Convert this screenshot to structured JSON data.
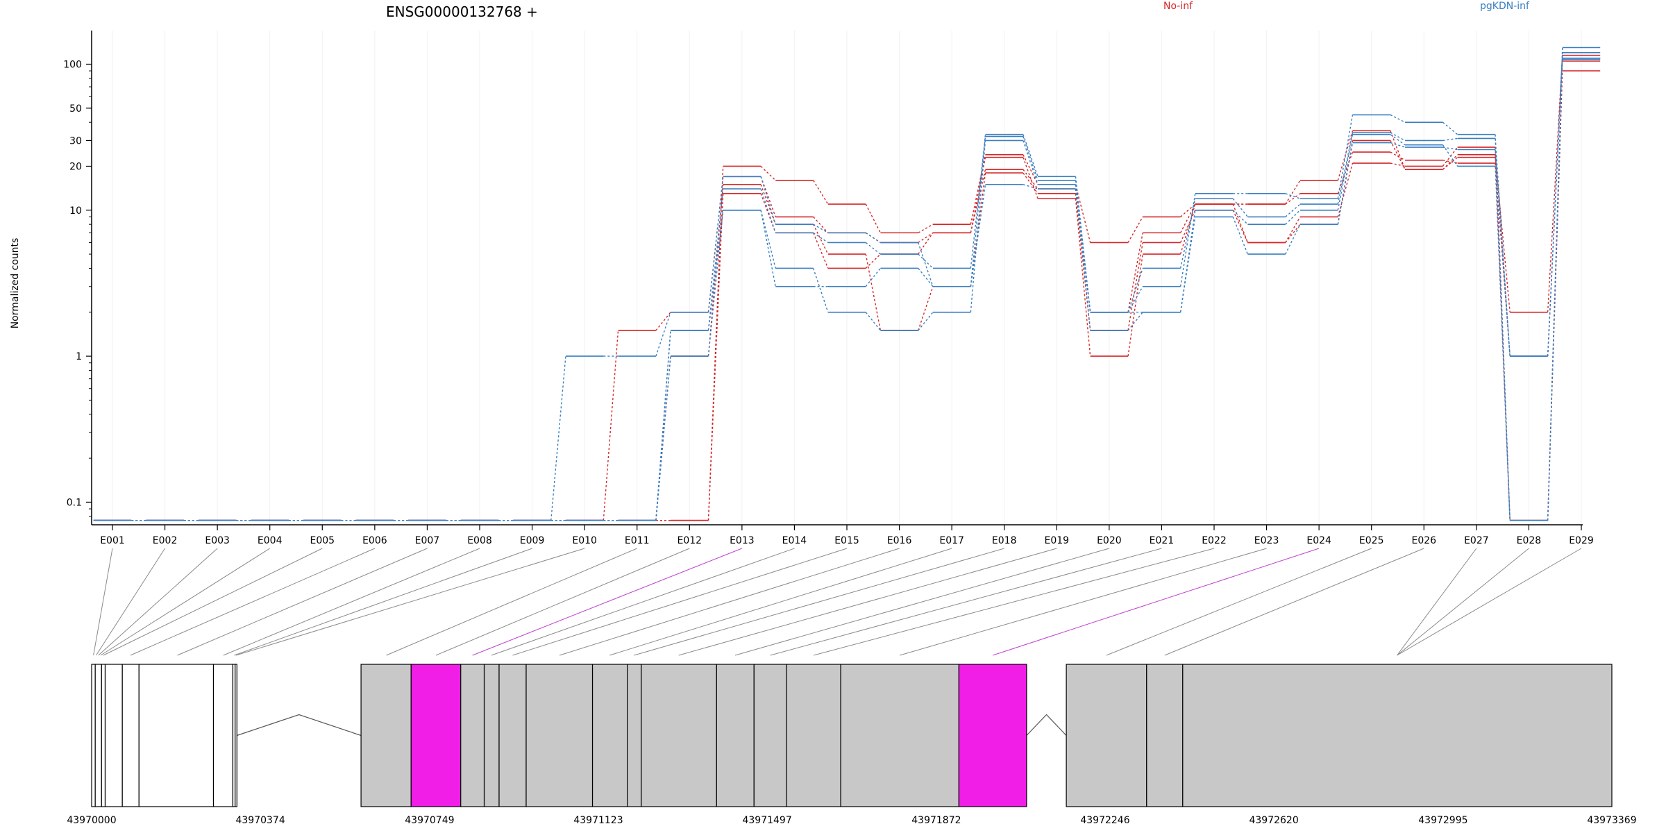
{
  "chart_data": {
    "type": "line",
    "title": "ENSG00000132768 +",
    "ylabel": "Normalized counts",
    "xlabel": "",
    "y_scale": "log",
    "ylim": [
      0.07,
      170
    ],
    "y_ticks": [
      0.1,
      1,
      10,
      20,
      30,
      50,
      100
    ],
    "y_tick_labels": [
      "0.1",
      "1",
      "10",
      "20",
      "30",
      "50",
      "100"
    ],
    "zero_value": 0.075,
    "grid": "vertical-light",
    "legend": [
      {
        "name": "No-inf",
        "color": "#d62728",
        "placement": "top-center"
      },
      {
        "name": "pgKDN-inf",
        "color": "#3a7fc1",
        "placement": "top-right"
      }
    ],
    "categories": [
      "E001",
      "E002",
      "E003",
      "E004",
      "E005",
      "E006",
      "E007",
      "E008",
      "E009",
      "E010",
      "E011",
      "E012",
      "E013",
      "E014",
      "E015",
      "E016",
      "E017",
      "E018",
      "E019",
      "E020",
      "E021",
      "E022",
      "E023",
      "E024",
      "E025",
      "E026",
      "E027",
      "E028",
      "E029"
    ],
    "series": [
      {
        "group": "No-inf",
        "color": "#d62728",
        "values": [
          0,
          0,
          0,
          0,
          0,
          0,
          0,
          0,
          0,
          0,
          0,
          0,
          20,
          16,
          11,
          7,
          8,
          24,
          15,
          6,
          9,
          11,
          11,
          16,
          35,
          19,
          23,
          2,
          115
        ]
      },
      {
        "group": "No-inf",
        "color": "#d62728",
        "values": [
          0,
          0,
          0,
          0,
          0,
          0,
          0,
          0,
          0,
          0,
          1.5,
          2,
          17,
          9,
          7,
          6,
          7,
          19,
          14,
          2,
          7,
          11,
          11,
          13,
          25,
          22,
          21,
          1,
          110
        ]
      },
      {
        "group": "No-inf",
        "color": "#d62728",
        "values": [
          0,
          0,
          0,
          0,
          0,
          0,
          0,
          0,
          0,
          0,
          0,
          1,
          15,
          8,
          5,
          1.5,
          3,
          18,
          13,
          1.5,
          6,
          10,
          6,
          9,
          21,
          20,
          27,
          0,
          105
        ]
      },
      {
        "group": "No-inf",
        "color": "#d62728",
        "values": [
          0,
          0,
          0,
          0,
          0,
          0,
          0,
          0,
          0,
          0,
          0,
          0,
          13,
          7,
          4,
          5,
          7,
          23,
          12,
          1,
          5,
          11,
          6,
          8,
          30,
          19,
          24,
          0,
          90
        ]
      },
      {
        "group": "pgKDN-inf",
        "color": "#3a7fc1",
        "values": [
          0,
          0,
          0,
          0,
          0,
          0,
          0,
          0,
          0,
          1,
          1,
          2,
          17,
          8,
          7,
          6,
          3,
          33,
          17,
          2,
          3,
          13,
          13,
          12,
          45,
          40,
          33,
          0,
          130
        ]
      },
      {
        "group": "pgKDN-inf",
        "color": "#3a7fc1",
        "values": [
          0,
          0,
          0,
          0,
          0,
          0,
          0,
          0,
          0,
          0,
          0,
          1.5,
          14,
          7,
          6,
          5,
          4,
          32,
          16,
          2,
          4,
          12,
          9,
          11,
          34,
          30,
          31,
          1,
          120
        ]
      },
      {
        "group": "pgKDN-inf",
        "color": "#3a7fc1",
        "values": [
          0,
          0,
          0,
          0,
          0,
          0,
          0,
          0,
          0,
          0,
          0,
          1,
          10,
          4,
          2,
          1.5,
          2,
          30,
          15,
          1.5,
          2,
          10,
          8,
          10,
          33,
          28,
          20,
          0,
          110
        ]
      },
      {
        "group": "pgKDN-inf",
        "color": "#3a7fc1",
        "values": [
          0,
          0,
          0,
          0,
          0,
          0,
          0,
          0,
          0,
          0,
          0,
          1.5,
          10,
          3,
          3,
          4,
          3,
          15,
          14,
          2,
          2,
          9,
          5,
          8,
          29,
          27,
          26,
          1,
          108
        ]
      }
    ],
    "gene_model": {
      "start": 43970000,
      "end": 43973369,
      "tick_labels": [
        "43970000",
        "43970374",
        "43970749",
        "43971123",
        "43971497",
        "43971872",
        "43972246",
        "43972620",
        "43972995",
        "43973369"
      ],
      "tick_positions": [
        43970000,
        43970374,
        43970749,
        43971123,
        43971497,
        43971872,
        43972246,
        43972620,
        43972995,
        43973369
      ],
      "exons": [
        {
          "id": "E001",
          "start": 43970000,
          "end": 43970008,
          "fill": "#ffffff"
        },
        {
          "id": "E002",
          "start": 43970008,
          "end": 43970022,
          "fill": "#ffffff"
        },
        {
          "id": "E003",
          "start": 43970022,
          "end": 43970030,
          "fill": "#ffffff"
        },
        {
          "id": "E004",
          "start": 43970030,
          "end": 43970068,
          "fill": "#ffffff"
        },
        {
          "id": "E005",
          "start": 43970068,
          "end": 43970105,
          "fill": "#ffffff"
        },
        {
          "id": "E006",
          "start": 43970105,
          "end": 43970270,
          "fill": "#ffffff"
        },
        {
          "id": "E007",
          "start": 43970270,
          "end": 43970313,
          "fill": "#ffffff"
        },
        {
          "id": "E008",
          "start": 43970313,
          "end": 43970318,
          "fill": "#ffffff"
        },
        {
          "id": "E009",
          "start": 43970318,
          "end": 43970322,
          "fill": "#ffffff"
        },
        {
          "id": "E010",
          "start": 43970597,
          "end": 43970708,
          "fill": "#c8c8c8"
        },
        {
          "id": "E011",
          "start": 43970708,
          "end": 43970818,
          "fill": "#f01ee6"
        },
        {
          "id": "E012",
          "start": 43970818,
          "end": 43970870,
          "fill": "#c8c8c8"
        },
        {
          "id": "E013",
          "start": 43970870,
          "end": 43970903,
          "fill": "#c8c8c8"
        },
        {
          "id": "E014",
          "start": 43970903,
          "end": 43970963,
          "fill": "#c8c8c8"
        },
        {
          "id": "E015",
          "start": 43970963,
          "end": 43971110,
          "fill": "#c8c8c8"
        },
        {
          "id": "E016",
          "start": 43971110,
          "end": 43971187,
          "fill": "#c8c8c8"
        },
        {
          "id": "E017",
          "start": 43971187,
          "end": 43971218,
          "fill": "#c8c8c8"
        },
        {
          "id": "E018",
          "start": 43971218,
          "end": 43971385,
          "fill": "#c8c8c8"
        },
        {
          "id": "E019",
          "start": 43971385,
          "end": 43971468,
          "fill": "#c8c8c8"
        },
        {
          "id": "E020",
          "start": 43971468,
          "end": 43971540,
          "fill": "#c8c8c8"
        },
        {
          "id": "E021",
          "start": 43971540,
          "end": 43971660,
          "fill": "#c8c8c8"
        },
        {
          "id": "E022",
          "start": 43971660,
          "end": 43971922,
          "fill": "#c8c8c8"
        },
        {
          "id": "E023",
          "start": 43971922,
          "end": 43972072,
          "fill": "#f01ee6"
        },
        {
          "id": "E024",
          "start": 43972160,
          "end": 43972338,
          "fill": "#c8c8c8"
        },
        {
          "id": "E025",
          "start": 43972338,
          "end": 43972418,
          "fill": "#c8c8c8"
        },
        {
          "id": "E026",
          "start": 43972418,
          "end": 43973369,
          "fill": "#c8c8c8"
        }
      ],
      "introns": [
        {
          "start": 43970322,
          "end": 43970597
        },
        {
          "start": 43972072,
          "end": 43972160
        }
      ],
      "connectors": [
        {
          "bin": "E001",
          "pos": 43970004,
          "highlight": false
        },
        {
          "bin": "E002",
          "pos": 43970010,
          "highlight": false
        },
        {
          "bin": "E003",
          "pos": 43970015,
          "highlight": false
        },
        {
          "bin": "E004",
          "pos": 43970020,
          "highlight": false
        },
        {
          "bin": "E005",
          "pos": 43970026,
          "highlight": false
        },
        {
          "bin": "E006",
          "pos": 43970086,
          "highlight": false
        },
        {
          "bin": "E007",
          "pos": 43970190,
          "highlight": false
        },
        {
          "bin": "E008",
          "pos": 43970292,
          "highlight": false
        },
        {
          "bin": "E009",
          "pos": 43970316,
          "highlight": false
        },
        {
          "bin": "E010",
          "pos": 43970320,
          "highlight": false
        },
        {
          "bin": "E011",
          "pos": 43970653,
          "highlight": false
        },
        {
          "bin": "E012",
          "pos": 43970763,
          "highlight": false
        },
        {
          "bin": "E013",
          "pos": 43970844,
          "highlight": true
        },
        {
          "bin": "E014",
          "pos": 43970886,
          "highlight": false
        },
        {
          "bin": "E015",
          "pos": 43970933,
          "highlight": false
        },
        {
          "bin": "E016",
          "pos": 43971037,
          "highlight": false
        },
        {
          "bin": "E017",
          "pos": 43971148,
          "highlight": false
        },
        {
          "bin": "E018",
          "pos": 43971202,
          "highlight": false
        },
        {
          "bin": "E019",
          "pos": 43971301,
          "highlight": false
        },
        {
          "bin": "E020",
          "pos": 43971426,
          "highlight": false
        },
        {
          "bin": "E021",
          "pos": 43971504,
          "highlight": false
        },
        {
          "bin": "E022",
          "pos": 43971600,
          "highlight": false
        },
        {
          "bin": "E023",
          "pos": 43971791,
          "highlight": false
        },
        {
          "bin": "E024",
          "pos": 43971997,
          "highlight": true
        },
        {
          "bin": "E025",
          "pos": 43972249,
          "highlight": false
        },
        {
          "bin": "E026",
          "pos": 43972378,
          "highlight": false
        },
        {
          "bin": "E027",
          "pos": 43972893,
          "highlight": false
        },
        {
          "bin": "E028",
          "pos": 43972893,
          "highlight": false
        },
        {
          "bin": "E029",
          "pos": 43972893,
          "highlight": false
        }
      ]
    }
  }
}
